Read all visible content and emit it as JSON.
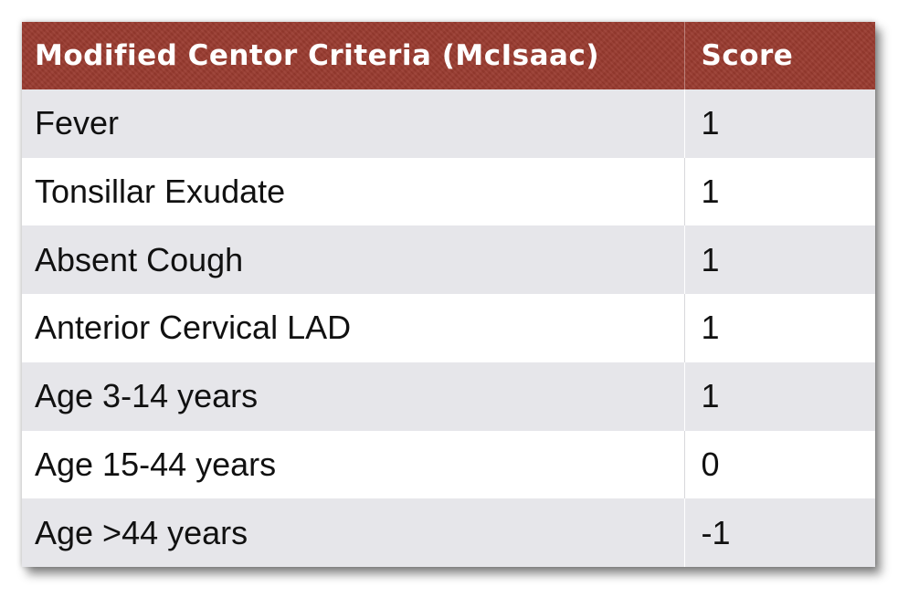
{
  "table": {
    "headers": {
      "criteria": "Modified Centor Criteria (McIsaac)",
      "score": "Score"
    },
    "rows": [
      {
        "criterion": "Fever",
        "score": "1"
      },
      {
        "criterion": "Tonsillar Exudate",
        "score": "1"
      },
      {
        "criterion": "Absent Cough",
        "score": "1"
      },
      {
        "criterion": "Anterior Cervical LAD",
        "score": "1"
      },
      {
        "criterion": "Age 3-14 years",
        "score": "1"
      },
      {
        "criterion": "Age 15-44 years",
        "score": "0"
      },
      {
        "criterion": "Age >44 years",
        "score": "-1"
      }
    ],
    "colors": {
      "header_bg": "#9a3b30",
      "header_text": "#ffffff",
      "stripe": "#e6e6ea"
    }
  }
}
